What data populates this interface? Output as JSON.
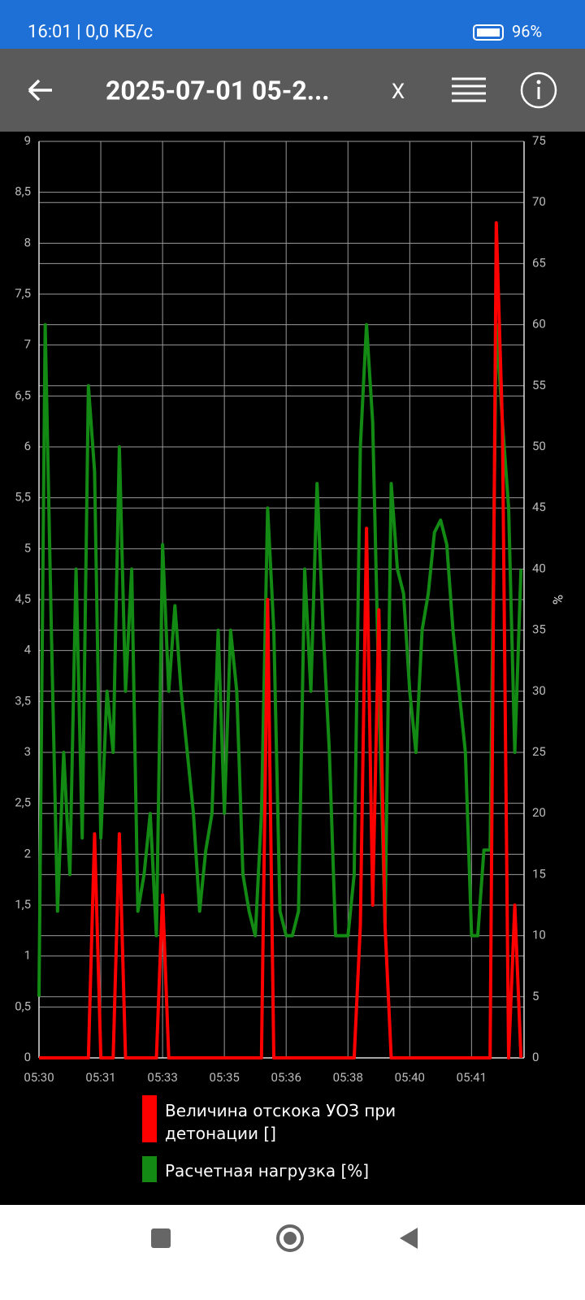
{
  "status_bar": {
    "time": "16:01 | 0,0 КБ/с",
    "battery": "96%"
  },
  "toolbar": {
    "title": "2025-07-01 05-2...",
    "close": "X"
  },
  "chart_data": {
    "type": "line",
    "x": [
      0,
      1,
      2,
      3,
      4,
      5,
      6,
      7,
      8,
      9,
      10,
      11,
      12,
      13,
      14,
      15,
      16,
      17,
      18,
      19,
      20,
      21,
      22,
      23,
      24,
      25,
      26,
      27,
      28,
      29,
      30,
      31,
      32,
      33,
      34,
      35,
      36,
      37,
      38,
      39,
      40,
      41,
      42,
      43,
      44,
      45,
      46,
      47,
      48,
      49,
      50,
      51,
      52,
      53,
      54,
      55,
      56,
      57,
      58,
      59,
      60,
      61,
      62,
      63,
      64,
      65,
      66,
      67,
      68,
      69,
      70,
      71,
      72,
      73,
      74,
      75,
      76,
      77,
      78
    ],
    "xlim": [
      0,
      78.5
    ],
    "xticks": [
      {
        "value": 0,
        "label": "05:30"
      },
      {
        "value": 10,
        "label": "05:31"
      },
      {
        "value": 20,
        "label": "05:33"
      },
      {
        "value": 30,
        "label": "05:35"
      },
      {
        "value": 40,
        "label": "05:36"
      },
      {
        "value": 50,
        "label": "05:38"
      },
      {
        "value": 60,
        "label": "05:40"
      },
      {
        "value": 70,
        "label": "05:41"
      }
    ],
    "ylim": [
      0,
      9
    ],
    "yticks": [
      0,
      {
        "value": 0.5,
        "label": "0,5"
      },
      1,
      {
        "value": 1.5,
        "label": "1,5"
      },
      2,
      {
        "value": 2.5,
        "label": "2,5"
      },
      3,
      {
        "value": 3.5,
        "label": "3,5"
      },
      4,
      {
        "value": 4.5,
        "label": "4,5"
      },
      5,
      {
        "value": 5.5,
        "label": "5,5"
      },
      6,
      {
        "value": 6.5,
        "label": "6,5"
      },
      7,
      {
        "value": 7.5,
        "label": "7,5"
      },
      8,
      {
        "value": 8.5,
        "label": "8,5"
      },
      9
    ],
    "y2lim": [
      0,
      75
    ],
    "y2ticks": [
      0,
      5,
      10,
      15,
      20,
      25,
      30,
      35,
      40,
      45,
      50,
      55,
      60,
      65,
      70,
      75
    ],
    "y2label": "%",
    "grid": true,
    "series": [
      {
        "name": "Величина отскока УОЗ при детонации []",
        "color": "#ff0000",
        "values": [
          0,
          0,
          0,
          0,
          0,
          0,
          0,
          0,
          0,
          2.2,
          0,
          0,
          0,
          2.2,
          0,
          0,
          0,
          0,
          0,
          0,
          1.6,
          0,
          0,
          0,
          0,
          0,
          0,
          0,
          0,
          0,
          0,
          0,
          0,
          0,
          0,
          0,
          0,
          4.5,
          0,
          0,
          0,
          0,
          0,
          0,
          0,
          0,
          0,
          0,
          0,
          0,
          0,
          0,
          1.3,
          5.2,
          1.5,
          4.4,
          1.3,
          0,
          0,
          0,
          0,
          0,
          0,
          0,
          0,
          0,
          0,
          0,
          0,
          0,
          0,
          0,
          0,
          0,
          8.2,
          6.2,
          0,
          1.5,
          0
        ]
      },
      {
        "name": "Расчетная нагрузка [%]",
        "color": "#138a13",
        "axis": "y2",
        "values": [
          5,
          60,
          35,
          12,
          25,
          15,
          40,
          18,
          55,
          48,
          18,
          30,
          25,
          50,
          30,
          40,
          12,
          15,
          20,
          10,
          42,
          30,
          37,
          30,
          25,
          20,
          12,
          17,
          20,
          35,
          20,
          35,
          30,
          15,
          12,
          10,
          20,
          45,
          35,
          12,
          10,
          10,
          12,
          40,
          30,
          47,
          35,
          25,
          10,
          10,
          10,
          15,
          50,
          60,
          52,
          30,
          11,
          47,
          40,
          38,
          30,
          25,
          35,
          38,
          43,
          44,
          42,
          35,
          30,
          25,
          10,
          10,
          17,
          17,
          60,
          52,
          45,
          25,
          40
        ]
      }
    ]
  }
}
